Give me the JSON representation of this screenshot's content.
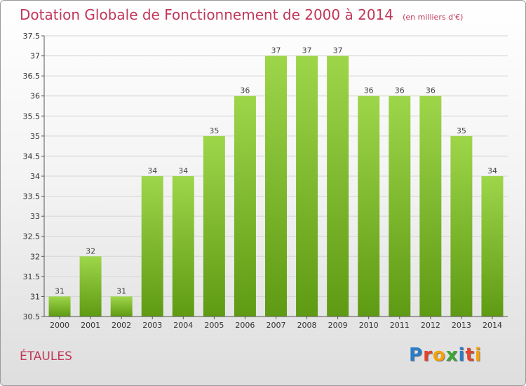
{
  "title": "Dotation Globale de Fonctionnement de 2000 à 2014",
  "unit_note": "(en milliers d'€)",
  "place": "ÉTAULES",
  "brand": {
    "text": "Proxiti",
    "colors": [
      "#2a7dc8",
      "#e0452f",
      "#f2a20c",
      "#3fa535",
      "#2a7dc8",
      "#e0452f",
      "#f2a20c"
    ]
  },
  "colors": {
    "title": "#c0375a",
    "bar_top": "#9ed64a",
    "bar_bottom": "#5e9a13",
    "grid": "#d4d4d4",
    "axis": "#555555"
  },
  "chart_data": {
    "type": "bar",
    "categories": [
      "2000",
      "2001",
      "2002",
      "2003",
      "2004",
      "2005",
      "2006",
      "2007",
      "2008",
      "2009",
      "2010",
      "2011",
      "2012",
      "2013",
      "2014"
    ],
    "values": [
      31,
      32,
      31,
      34,
      34,
      35,
      36,
      37,
      37,
      37,
      36,
      36,
      36,
      35,
      34
    ],
    "ylim": [
      30.5,
      37.5
    ],
    "yticks": [
      30.5,
      31,
      31.5,
      32,
      32.5,
      33,
      33.5,
      34,
      34.5,
      35,
      35.5,
      36,
      36.5,
      37,
      37.5
    ],
    "xlabel": "",
    "ylabel": "",
    "grid": true
  }
}
